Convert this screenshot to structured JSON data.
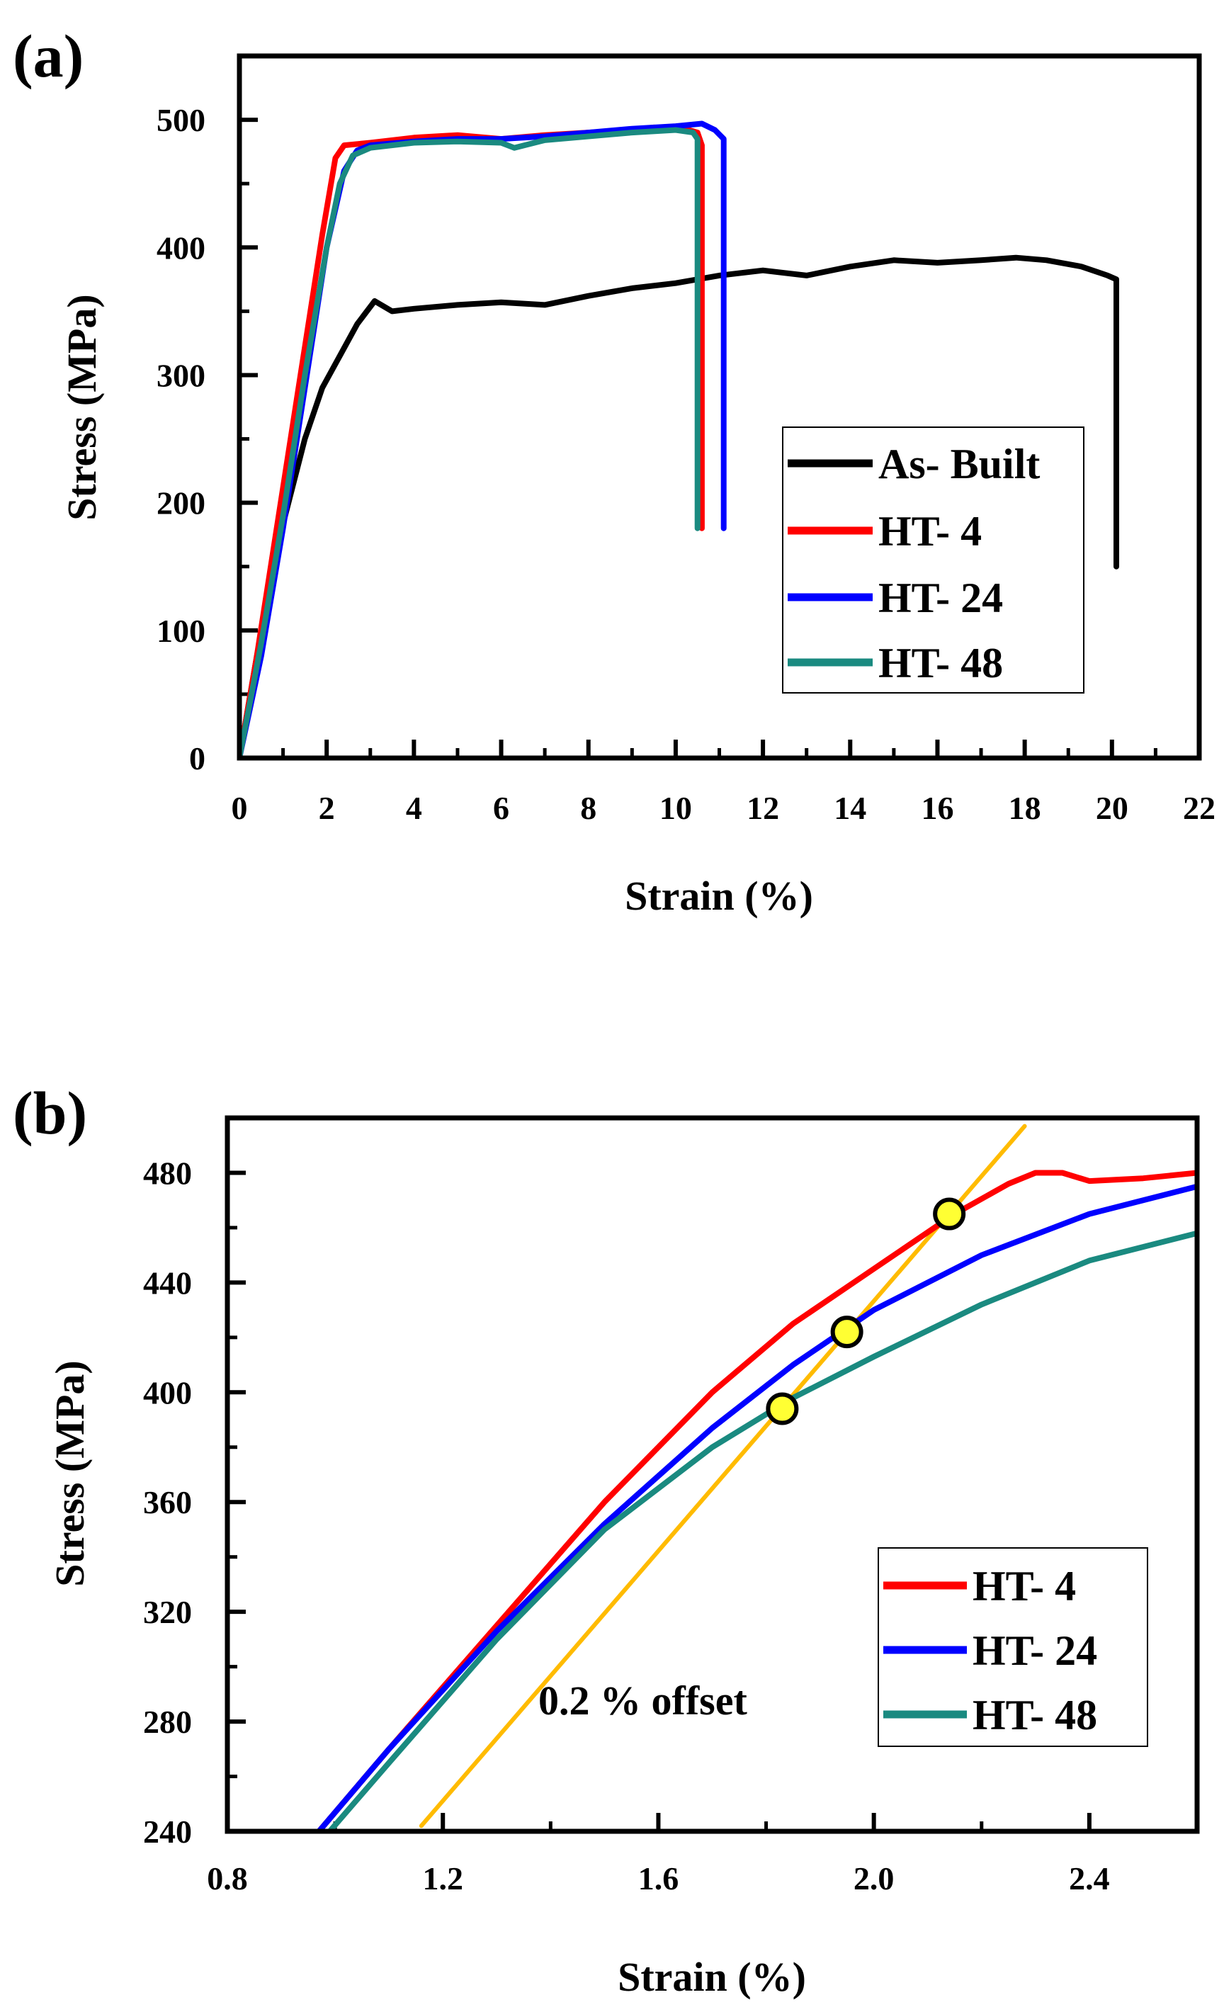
{
  "chart_data": [
    {
      "type": "line",
      "panel_label": "(a)",
      "title": "",
      "xlabel": "Strain (%)",
      "ylabel": "Stress (MPa)",
      "xlim": [
        0,
        22
      ],
      "ylim": [
        0,
        550
      ],
      "xticks": [
        0,
        2,
        4,
        6,
        8,
        10,
        12,
        14,
        16,
        18,
        20,
        22
      ],
      "yticks": [
        0,
        100,
        200,
        300,
        400,
        500
      ],
      "legend_position": "center-right",
      "series": [
        {
          "name": "As- Built",
          "color": "#000000",
          "x": [
            0,
            0.4,
            0.9,
            1.5,
            1.9,
            2.3,
            2.7,
            3.1,
            3.5,
            4,
            5,
            6,
            7,
            8,
            9,
            10,
            11,
            12,
            13,
            14,
            15,
            16,
            17,
            17.8,
            18.5,
            19.3,
            19.9,
            20.1,
            20.1
          ],
          "y": [
            0,
            80,
            170,
            250,
            290,
            315,
            340,
            358,
            350,
            352,
            355,
            357,
            355,
            362,
            368,
            372,
            378,
            382,
            378,
            385,
            390,
            388,
            390,
            392,
            390,
            385,
            378,
            375,
            150
          ]
        },
        {
          "name": "HT- 4",
          "color": "#ff0000",
          "x": [
            0,
            0.4,
            0.9,
            1.4,
            1.9,
            2.2,
            2.4,
            3,
            4,
            5,
            6,
            7,
            8,
            9,
            9.5,
            10.2,
            10.5,
            10.6,
            10.6
          ],
          "y": [
            0,
            80,
            190,
            300,
            410,
            470,
            480,
            482,
            486,
            488,
            485,
            488,
            490,
            492,
            494,
            493,
            490,
            480,
            180
          ]
        },
        {
          "name": "HT- 24",
          "color": "#0000ff",
          "x": [
            0,
            0.5,
            1,
            1.5,
            2,
            2.4,
            2.7,
            3,
            4,
            5,
            6,
            7,
            8,
            9,
            10,
            10.6,
            10.9,
            11.1,
            11.1
          ],
          "y": [
            0,
            80,
            180,
            290,
            400,
            460,
            476,
            480,
            483,
            485,
            485,
            487,
            490,
            493,
            495,
            497,
            492,
            485,
            180
          ]
        },
        {
          "name": "HT- 48",
          "color": "#1a8a80",
          "x": [
            0,
            0.5,
            1,
            1.5,
            2,
            2.3,
            2.6,
            3,
            4,
            5,
            6,
            6.3,
            7,
            8,
            9,
            10,
            10.4,
            10.5,
            10.5
          ],
          "y": [
            0,
            90,
            190,
            300,
            400,
            450,
            472,
            478,
            482,
            483,
            482,
            478,
            484,
            487,
            490,
            492,
            490,
            485,
            180
          ]
        }
      ]
    },
    {
      "type": "line",
      "panel_label": "(b)",
      "title": "",
      "xlabel": "Strain (%)",
      "ylabel": "Stress (MPa)",
      "xlim": [
        0.8,
        2.6
      ],
      "ylim": [
        240,
        500
      ],
      "xticks": [
        0.8,
        1.2,
        1.6,
        2.0,
        2.4
      ],
      "yticks": [
        240,
        280,
        320,
        360,
        400,
        440,
        480
      ],
      "legend_position": "bottom-right",
      "annotation": "0.2 % offset",
      "series": [
        {
          "name": "HT- 4",
          "color": "#ff0000",
          "x": [
            0.97,
            1.1,
            1.3,
            1.5,
            1.7,
            1.85,
            2.0,
            2.15,
            2.25,
            2.3,
            2.35,
            2.4,
            2.5,
            2.6
          ],
          "y": [
            240,
            270,
            315,
            360,
            400,
            425,
            445,
            465,
            476,
            480,
            480,
            477,
            478,
            480
          ]
        },
        {
          "name": "HT- 24",
          "color": "#0000ff",
          "x": [
            0.97,
            1.1,
            1.3,
            1.5,
            1.7,
            1.85,
            2.0,
            2.2,
            2.4,
            2.6
          ],
          "y": [
            240,
            270,
            313,
            352,
            387,
            410,
            430,
            450,
            465,
            475
          ]
        },
        {
          "name": "HT- 48",
          "color": "#1a8a80",
          "x": [
            0.99,
            1.1,
            1.3,
            1.5,
            1.7,
            1.85,
            2.0,
            2.2,
            2.4,
            2.6
          ],
          "y": [
            240,
            265,
            310,
            350,
            380,
            398,
            413,
            432,
            448,
            458
          ]
        },
        {
          "name": "0.2 % offset",
          "color": "#ffbb00",
          "x": [
            1.16,
            2.28
          ],
          "y": [
            242,
            497
          ]
        }
      ],
      "yield_points": [
        {
          "x": 2.14,
          "y": 465,
          "color": "#ffff33"
        },
        {
          "x": 1.95,
          "y": 422,
          "color": "#ffff33"
        },
        {
          "x": 1.83,
          "y": 394,
          "color": "#ffff33"
        }
      ]
    }
  ]
}
